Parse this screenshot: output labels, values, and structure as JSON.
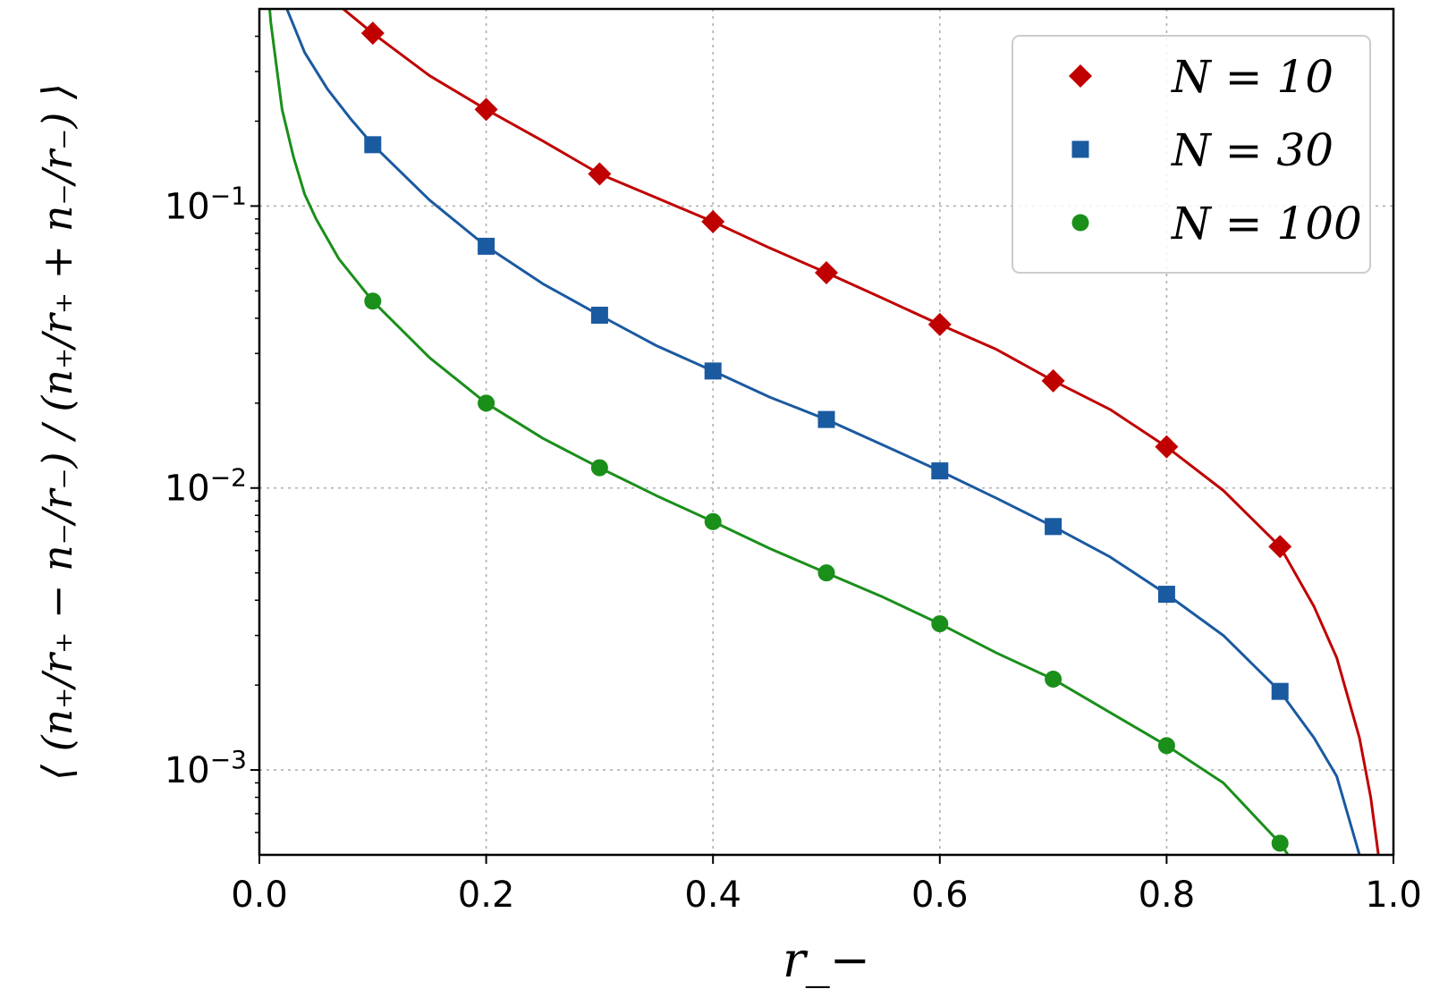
{
  "chart_data": {
    "type": "line",
    "xlabel": "r_−",
    "ylabel": "⟨ (n₊/r₊ − n₋/r₋) / (n₊/r₊ + n₋/r₋) ⟩",
    "xlim": [
      0.0,
      1.0
    ],
    "ylim": [
      0.0005,
      0.5
    ],
    "y_scale": "log",
    "grid": true,
    "legend_position": "top-right",
    "x_ticks": [
      "0.0",
      "0.2",
      "0.4",
      "0.6",
      "0.8",
      "1.0"
    ],
    "y_ticks": [
      {
        "base": "10",
        "exp": "−1",
        "value": 0.1
      },
      {
        "base": "10",
        "exp": "−2",
        "value": 0.01
      },
      {
        "base": "10",
        "exp": "−3",
        "value": 0.001
      }
    ],
    "series": [
      {
        "name": "N = 10",
        "color": "#c00000",
        "marker": "diamond",
        "points": {
          "x": [
            0.1,
            0.2,
            0.3,
            0.4,
            0.5,
            0.6,
            0.7,
            0.8,
            0.9
          ],
          "y": [
            0.41,
            0.22,
            0.13,
            0.088,
            0.058,
            0.038,
            0.024,
            0.014,
            0.0062
          ]
        },
        "curve": {
          "x": [
            0.0,
            0.05,
            0.1,
            0.15,
            0.2,
            0.25,
            0.3,
            0.35,
            0.4,
            0.45,
            0.5,
            0.55,
            0.6,
            0.65,
            0.7,
            0.75,
            0.8,
            0.85,
            0.9,
            0.93,
            0.95,
            0.97,
            0.98,
            0.99
          ],
          "y": [
            1.2,
            0.6,
            0.41,
            0.29,
            0.22,
            0.17,
            0.13,
            0.107,
            0.088,
            0.071,
            0.058,
            0.047,
            0.038,
            0.031,
            0.024,
            0.019,
            0.014,
            0.0098,
            0.0062,
            0.0038,
            0.0025,
            0.0013,
            0.0008,
            0.0004
          ]
        }
      },
      {
        "name": "N = 30",
        "color": "#1a5aa0",
        "marker": "square",
        "points": {
          "x": [
            0.1,
            0.2,
            0.3,
            0.4,
            0.5,
            0.6,
            0.7,
            0.8,
            0.9
          ],
          "y": [
            0.165,
            0.072,
            0.041,
            0.026,
            0.0175,
            0.0115,
            0.0073,
            0.0042,
            0.0019
          ]
        },
        "curve": {
          "x": [
            0.01,
            0.02,
            0.04,
            0.06,
            0.08,
            0.1,
            0.15,
            0.2,
            0.25,
            0.3,
            0.35,
            0.4,
            0.45,
            0.5,
            0.55,
            0.6,
            0.65,
            0.7,
            0.75,
            0.8,
            0.85,
            0.9,
            0.93,
            0.95,
            0.97,
            0.98
          ],
          "y": [
            0.8,
            0.55,
            0.35,
            0.26,
            0.205,
            0.165,
            0.105,
            0.072,
            0.053,
            0.041,
            0.032,
            0.026,
            0.021,
            0.0175,
            0.0142,
            0.0115,
            0.0092,
            0.0073,
            0.0057,
            0.0042,
            0.003,
            0.0019,
            0.0013,
            0.00095,
            0.0005,
            0.0003
          ]
        }
      },
      {
        "name": "N = 100",
        "color": "#1a8f1a",
        "marker": "circle",
        "points": {
          "x": [
            0.1,
            0.2,
            0.3,
            0.4,
            0.5,
            0.6,
            0.7,
            0.8,
            0.9
          ],
          "y": [
            0.046,
            0.02,
            0.0118,
            0.0076,
            0.005,
            0.0033,
            0.0021,
            0.00122,
            0.00055
          ]
        },
        "curve": {
          "x": [
            0.005,
            0.01,
            0.02,
            0.03,
            0.04,
            0.05,
            0.07,
            0.1,
            0.15,
            0.2,
            0.25,
            0.3,
            0.35,
            0.4,
            0.45,
            0.5,
            0.55,
            0.6,
            0.65,
            0.7,
            0.75,
            0.8,
            0.85,
            0.9,
            0.92,
            0.94
          ],
          "y": [
            0.8,
            0.45,
            0.22,
            0.15,
            0.11,
            0.09,
            0.065,
            0.046,
            0.029,
            0.02,
            0.015,
            0.0118,
            0.0094,
            0.0076,
            0.0061,
            0.005,
            0.0041,
            0.0033,
            0.0026,
            0.0021,
            0.0016,
            0.00122,
            0.0009,
            0.00055,
            0.00042,
            0.0003
          ]
        }
      }
    ]
  }
}
